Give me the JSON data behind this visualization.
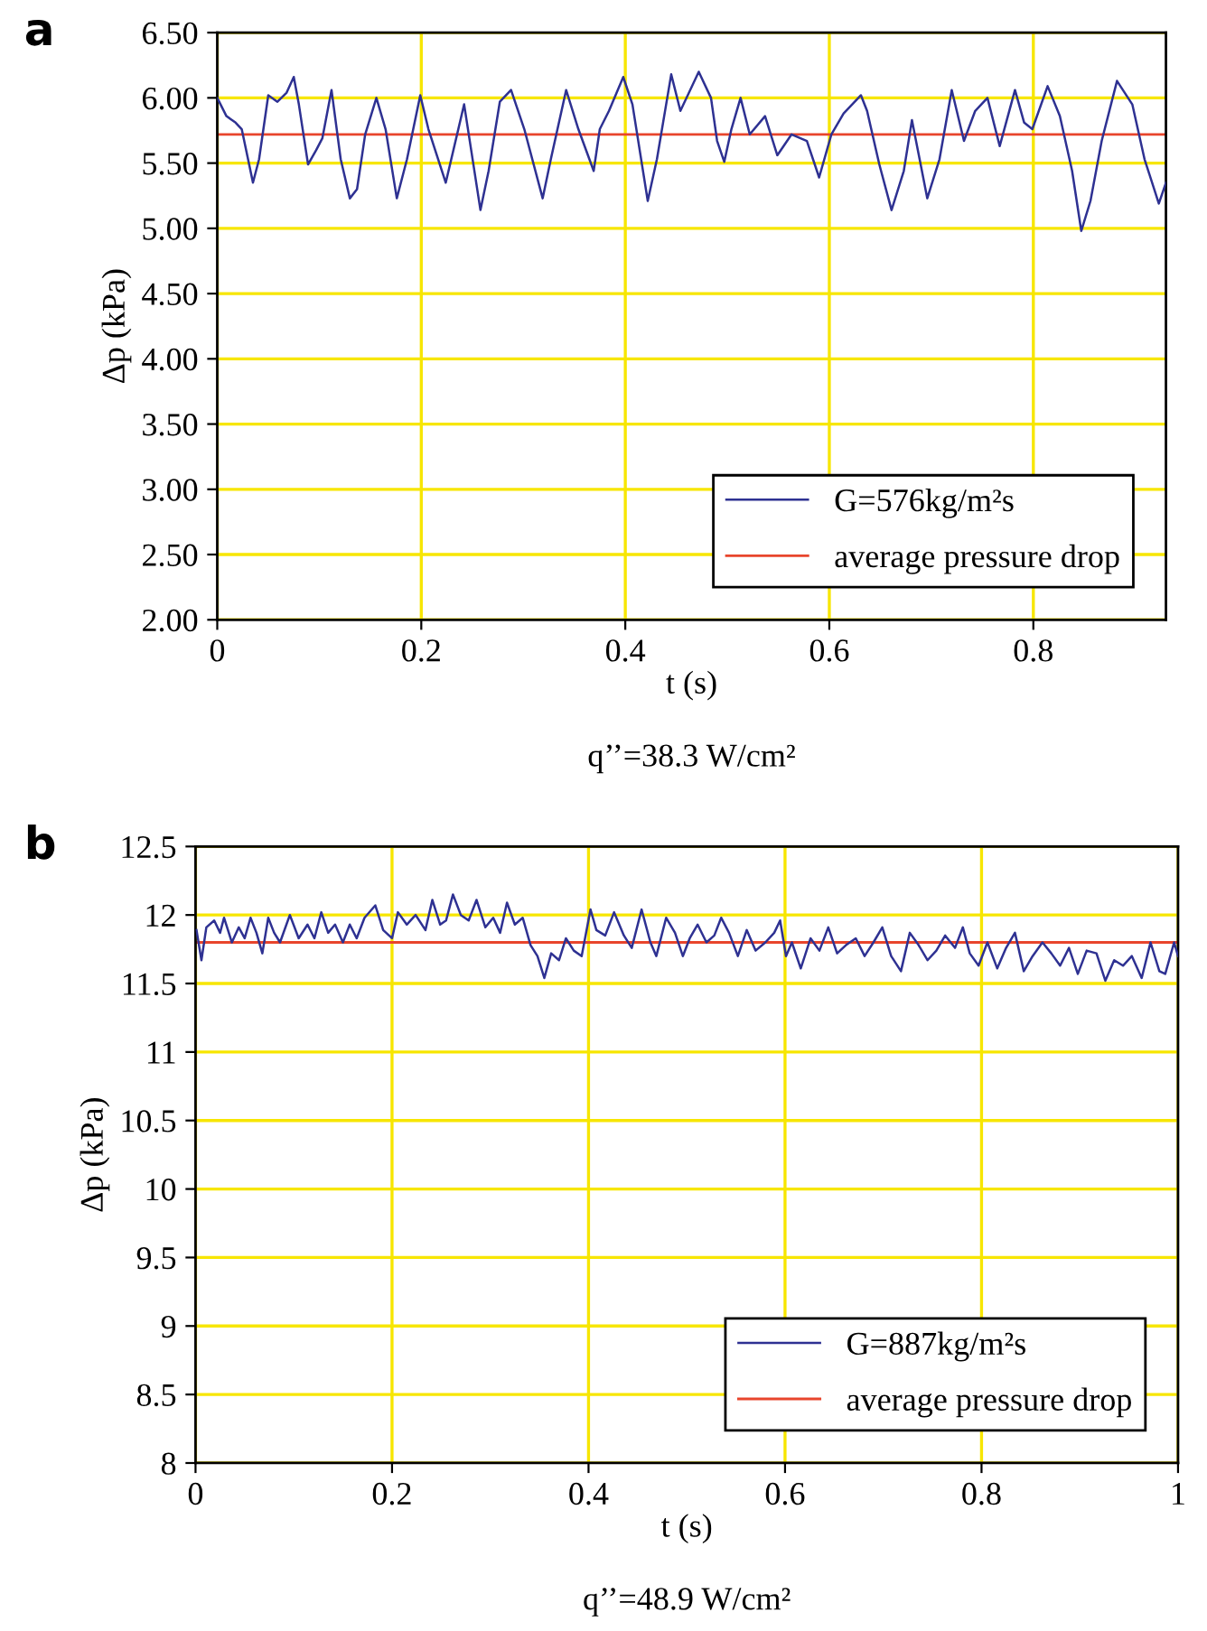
{
  "chart_data": [
    {
      "type": "line",
      "title": "a",
      "xlabel": "t (s)",
      "ylabel": "Δp (kPa)",
      "annotations": [
        "q’’=38.3 W/cm²"
      ],
      "grid": true,
      "legend": "bottom right",
      "xlim": [
        0,
        0.93
      ],
      "xticks": [
        0,
        0.2,
        0.4,
        0.6,
        0.8
      ],
      "ylim": [
        2.0,
        6.5
      ],
      "yticks": [
        {
          "value": 2.0,
          "label": "2.00"
        },
        {
          "value": 2.5,
          "label": "2.50"
        },
        {
          "value": 3.0,
          "label": "3.00"
        },
        {
          "value": 3.5,
          "label": "3.50"
        },
        {
          "value": 4.0,
          "label": "4.00"
        },
        {
          "value": 4.5,
          "label": "4.50"
        },
        {
          "value": 5.0,
          "label": "5.00"
        },
        {
          "value": 5.5,
          "label": "5.50"
        },
        {
          "value": 6.0,
          "label": "6.00"
        },
        {
          "value": 6.5,
          "label": "6.50"
        }
      ],
      "ref_lines": [
        {
          "axis": "y",
          "value": 5.72,
          "label": "average pressure drop",
          "color": "#e8452c"
        }
      ],
      "series": [
        {
          "name": "G=576kg/m²s",
          "color": "#2e3192",
          "x": [
            0,
            0.009,
            0.018,
            0.024,
            0.035,
            0.041,
            0.05,
            0.059,
            0.068,
            0.075,
            0.08,
            0.089,
            0.097,
            0.103,
            0.112,
            0.121,
            0.13,
            0.137,
            0.145,
            0.156,
            0.165,
            0.176,
            0.186,
            0.199,
            0.207,
            0.224,
            0.242,
            0.258,
            0.266,
            0.277,
            0.288,
            0.301,
            0.319,
            0.327,
            0.342,
            0.354,
            0.369,
            0.375,
            0.384,
            0.398,
            0.407,
            0.422,
            0.431,
            0.445,
            0.454,
            0.472,
            0.484,
            0.49,
            0.497,
            0.504,
            0.513,
            0.522,
            0.537,
            0.549,
            0.563,
            0.578,
            0.59,
            0.602,
            0.614,
            0.631,
            0.637,
            0.649,
            0.661,
            0.673,
            0.681,
            0.696,
            0.708,
            0.72,
            0.732,
            0.743,
            0.755,
            0.767,
            0.782,
            0.791,
            0.799,
            0.814,
            0.826,
            0.838,
            0.847,
            0.856,
            0.867,
            0.882,
            0.897,
            0.909,
            0.923,
            0.93
          ],
          "values": [
            6.0,
            5.86,
            5.81,
            5.76,
            5.35,
            5.53,
            6.02,
            5.97,
            6.04,
            6.16,
            5.95,
            5.49,
            5.6,
            5.69,
            6.06,
            5.53,
            5.23,
            5.3,
            5.72,
            6.0,
            5.76,
            5.23,
            5.53,
            6.02,
            5.76,
            5.35,
            5.95,
            5.14,
            5.44,
            5.97,
            6.06,
            5.76,
            5.23,
            5.53,
            6.06,
            5.76,
            5.44,
            5.76,
            5.9,
            6.16,
            5.95,
            5.21,
            5.53,
            6.18,
            5.9,
            6.2,
            6.0,
            5.67,
            5.51,
            5.76,
            6.0,
            5.72,
            5.86,
            5.56,
            5.72,
            5.67,
            5.39,
            5.72,
            5.88,
            6.02,
            5.9,
            5.49,
            5.14,
            5.44,
            5.83,
            5.23,
            5.53,
            6.06,
            5.67,
            5.9,
            6.0,
            5.63,
            6.06,
            5.81,
            5.76,
            6.09,
            5.86,
            5.44,
            4.98,
            5.21,
            5.67,
            6.13,
            5.95,
            5.53,
            5.19,
            5.35
          ]
        }
      ]
    },
    {
      "type": "line",
      "title": "b",
      "xlabel": "t (s)",
      "ylabel": "Δp (kPa)",
      "annotations": [
        "q’’=48.9 W/cm²"
      ],
      "grid": true,
      "legend": "bottom right",
      "xlim": [
        0,
        1
      ],
      "xticks": [
        0,
        0.2,
        0.4,
        0.6,
        0.8,
        1
      ],
      "ylim": [
        8,
        12.5
      ],
      "yticks": [
        8,
        8.5,
        9,
        9.5,
        10,
        10.5,
        11,
        11.5,
        12,
        12.5
      ],
      "ref_lines": [
        {
          "axis": "y",
          "value": 11.8,
          "label": "average pressure drop",
          "color": "#e8452c"
        }
      ],
      "series": [
        {
          "name": "G=887kg/m²s",
          "color": "#2e3192",
          "x": [
            0.001,
            0.006,
            0.011,
            0.019,
            0.025,
            0.029,
            0.037,
            0.044,
            0.05,
            0.056,
            0.062,
            0.068,
            0.074,
            0.08,
            0.086,
            0.096,
            0.105,
            0.114,
            0.121,
            0.128,
            0.135,
            0.142,
            0.15,
            0.157,
            0.164,
            0.172,
            0.183,
            0.191,
            0.2,
            0.206,
            0.215,
            0.224,
            0.234,
            0.241,
            0.249,
            0.255,
            0.262,
            0.27,
            0.278,
            0.286,
            0.295,
            0.303,
            0.31,
            0.317,
            0.325,
            0.333,
            0.341,
            0.348,
            0.355,
            0.362,
            0.37,
            0.377,
            0.385,
            0.393,
            0.402,
            0.408,
            0.417,
            0.426,
            0.436,
            0.444,
            0.454,
            0.463,
            0.469,
            0.479,
            0.488,
            0.496,
            0.503,
            0.511,
            0.52,
            0.528,
            0.535,
            0.543,
            0.552,
            0.561,
            0.57,
            0.58,
            0.589,
            0.595,
            0.601,
            0.607,
            0.616,
            0.626,
            0.635,
            0.644,
            0.653,
            0.662,
            0.672,
            0.681,
            0.69,
            0.699,
            0.708,
            0.718,
            0.727,
            0.736,
            0.745,
            0.754,
            0.763,
            0.773,
            0.781,
            0.788,
            0.797,
            0.806,
            0.816,
            0.825,
            0.834,
            0.843,
            0.852,
            0.862,
            0.871,
            0.88,
            0.889,
            0.898,
            0.907,
            0.917,
            0.926,
            0.935,
            0.944,
            0.953,
            0.963,
            0.972,
            0.981,
            0.987,
            0.996,
            1.0
          ],
          "values": [
            11.89,
            11.67,
            11.91,
            11.96,
            11.87,
            11.98,
            11.8,
            11.91,
            11.83,
            11.98,
            11.87,
            11.72,
            11.98,
            11.87,
            11.8,
            12.0,
            11.83,
            11.93,
            11.83,
            12.02,
            11.87,
            11.93,
            11.8,
            11.93,
            11.83,
            11.98,
            12.07,
            11.89,
            11.83,
            12.02,
            11.93,
            12.0,
            11.89,
            12.11,
            11.93,
            11.96,
            12.15,
            12.0,
            11.96,
            12.11,
            11.91,
            11.98,
            11.87,
            12.09,
            11.93,
            11.98,
            11.78,
            11.7,
            11.54,
            11.72,
            11.67,
            11.83,
            11.74,
            11.7,
            12.04,
            11.89,
            11.85,
            12.02,
            11.85,
            11.76,
            12.04,
            11.8,
            11.7,
            11.98,
            11.87,
            11.7,
            11.83,
            11.93,
            11.8,
            11.85,
            11.98,
            11.87,
            11.7,
            11.89,
            11.74,
            11.8,
            11.87,
            11.96,
            11.7,
            11.8,
            11.61,
            11.83,
            11.74,
            11.91,
            11.72,
            11.78,
            11.83,
            11.7,
            11.8,
            11.91,
            11.7,
            11.59,
            11.87,
            11.78,
            11.67,
            11.74,
            11.85,
            11.76,
            11.91,
            11.72,
            11.63,
            11.8,
            11.61,
            11.76,
            11.87,
            11.59,
            11.7,
            11.8,
            11.72,
            11.63,
            11.76,
            11.57,
            11.74,
            11.72,
            11.52,
            11.67,
            11.63,
            11.7,
            11.54,
            11.8,
            11.59,
            11.57,
            11.8,
            11.7
          ]
        }
      ]
    }
  ]
}
